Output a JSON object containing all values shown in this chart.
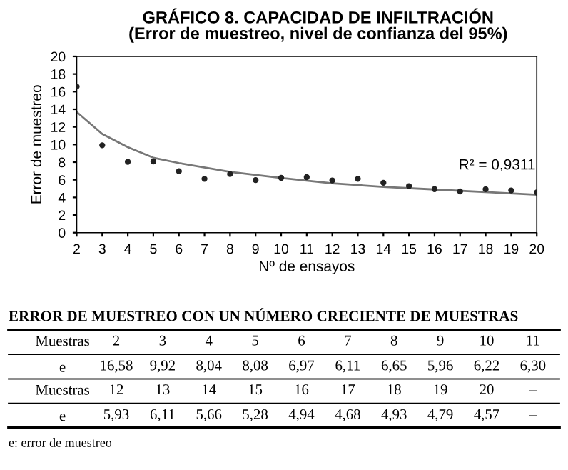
{
  "chart_data": [
    {
      "type": "scatter",
      "title": "GRÁFICO 8. CAPACIDAD DE INFILTRACIÓN",
      "subtitle": "(Error de muestreo, nivel de confianza del 95%)",
      "xlabel": "Nº de ensayos",
      "ylabel": "Error de muestreo",
      "xlim": [
        2,
        20
      ],
      "xticks": [
        2,
        3,
        4,
        5,
        6,
        7,
        8,
        9,
        10,
        11,
        12,
        13,
        14,
        15,
        16,
        17,
        18,
        19,
        20
      ],
      "ylim": [
        0,
        20
      ],
      "yticks": [
        0,
        2,
        4,
        6,
        8,
        10,
        12,
        14,
        16,
        18,
        20
      ],
      "grid": false,
      "legend": false,
      "series": [
        {
          "color": "#222222",
          "marker": "circle",
          "x": [
            2,
            3,
            4,
            5,
            6,
            7,
            8,
            9,
            10,
            11,
            12,
            13,
            14,
            15,
            16,
            17,
            18,
            19,
            20
          ],
          "values": [
            16.58,
            9.92,
            8.04,
            8.08,
            6.97,
            6.11,
            6.65,
            5.96,
            6.22,
            6.3,
            5.93,
            6.11,
            5.66,
            5.28,
            4.94,
            4.68,
            4.93,
            4.79,
            4.57
          ]
        },
        {
          "type": "line",
          "color": "#777777",
          "marker": "none",
          "line_style": "solid",
          "x": [
            2,
            3,
            4,
            5,
            6,
            8,
            10,
            12,
            14,
            16,
            18,
            20
          ],
          "values": [
            13.7,
            11.2,
            9.7,
            8.5,
            7.9,
            6.9,
            6.2,
            5.6,
            5.2,
            4.9,
            4.6,
            4.3
          ]
        }
      ],
      "annotations": [
        "R² = 0,9311"
      ]
    },
    {
      "type": "heatmap",
      "title": "ERROR DE MUESTREO CON UN NÚMERO CRECIENTE DE MUESTRAS",
      "xlabel": "Muestras",
      "categories": [
        "2",
        "3",
        "4",
        "5",
        "6",
        "7",
        "8",
        "9",
        "10",
        "11"
      ],
      "y_categories": [
        "e"
      ],
      "cells": [
        [
          null,
          null,
          null,
          null,
          null,
          null,
          null,
          null,
          null,
          null
        ]
      ],
      "cell_labels": [
        [
          "16,58",
          "9,92",
          "8,04",
          "8,08",
          "6,97",
          "6,11",
          "6,65",
          "5,96",
          "6,22",
          "6,30"
        ]
      ]
    },
    {
      "type": "heatmap",
      "xlabel": "Muestras",
      "categories": [
        "12",
        "13",
        "14",
        "15",
        "16",
        "17",
        "18",
        "19",
        "20",
        "–"
      ],
      "y_categories": [
        "e"
      ],
      "cells": [
        [
          null,
          null,
          null,
          null,
          null,
          null,
          null,
          null,
          null,
          null
        ]
      ],
      "cell_labels": [
        [
          "5,93",
          "6,11",
          "5,66",
          "5,28",
          "4,94",
          "4,68",
          "4,93",
          "4,79",
          "4,57",
          "–"
        ]
      ],
      "annotations": [
        "e: error de muestreo"
      ]
    }
  ]
}
